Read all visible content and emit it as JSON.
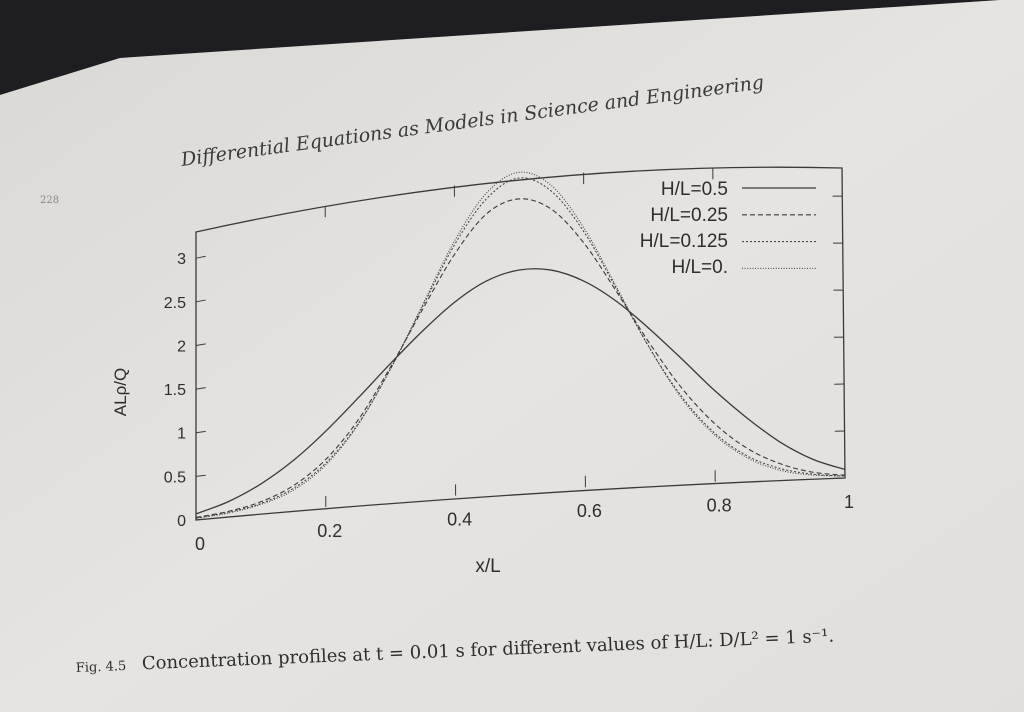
{
  "page": {
    "running_head": "Differential Equations as Models in Science and Engineering",
    "page_number": "228",
    "caption_label": "Fig. 4.5",
    "caption_text": "Concentration profiles at t = 0.01 s for different values of H/L: D/L² = 1 s⁻¹."
  },
  "colors": {
    "paper": "#e4e2df",
    "ink": "#3a3a3c",
    "dark_bg": "#1e1e22"
  },
  "chart_data": {
    "type": "line",
    "xlabel": "x/L",
    "ylabel": "ALρ/Q",
    "xlim": [
      0,
      1
    ],
    "ylim": [
      0,
      3.3
    ],
    "xticks": [
      "0",
      "0.2",
      "0.4",
      "0.6",
      "0.8",
      "1"
    ],
    "yticks": [
      "0",
      "0.5",
      "1",
      "1.5",
      "2",
      "2.5",
      "3"
    ],
    "legend_position": "top-right",
    "x": [
      0,
      0.05,
      0.1,
      0.15,
      0.2,
      0.25,
      0.3,
      0.35,
      0.4,
      0.45,
      0.5,
      0.55,
      0.6,
      0.65,
      0.7,
      0.75,
      0.8,
      0.85,
      0.9,
      0.95,
      1.0
    ],
    "series": [
      {
        "name": "H/L=0.5",
        "dash": "solid",
        "values": [
          0.07,
          0.17,
          0.33,
          0.55,
          0.83,
          1.15,
          1.48,
          1.79,
          2.06,
          2.25,
          2.33,
          2.3,
          2.16,
          1.93,
          1.63,
          1.3,
          0.96,
          0.66,
          0.4,
          0.21,
          0.09
        ]
      },
      {
        "name": "H/L=0.25",
        "dash": "dashed",
        "values": [
          0.03,
          0.06,
          0.13,
          0.27,
          0.52,
          0.91,
          1.44,
          2.02,
          2.57,
          2.96,
          3.08,
          2.94,
          2.56,
          2.03,
          1.48,
          0.99,
          0.61,
          0.34,
          0.17,
          0.07,
          0.03
        ]
      },
      {
        "name": "H/L=0.125",
        "dash": "fine-dotted",
        "values": [
          0.02,
          0.05,
          0.11,
          0.24,
          0.48,
          0.87,
          1.42,
          2.05,
          2.67,
          3.12,
          3.3,
          3.13,
          2.68,
          2.06,
          1.43,
          0.9,
          0.51,
          0.26,
          0.12,
          0.05,
          0.02
        ]
      },
      {
        "name": "H/L=0.",
        "dash": "dotted",
        "values": [
          0.02,
          0.04,
          0.1,
          0.22,
          0.46,
          0.86,
          1.42,
          2.07,
          2.71,
          3.18,
          3.36,
          3.19,
          2.72,
          2.08,
          1.43,
          0.88,
          0.49,
          0.24,
          0.1,
          0.04,
          0.02
        ]
      }
    ]
  }
}
